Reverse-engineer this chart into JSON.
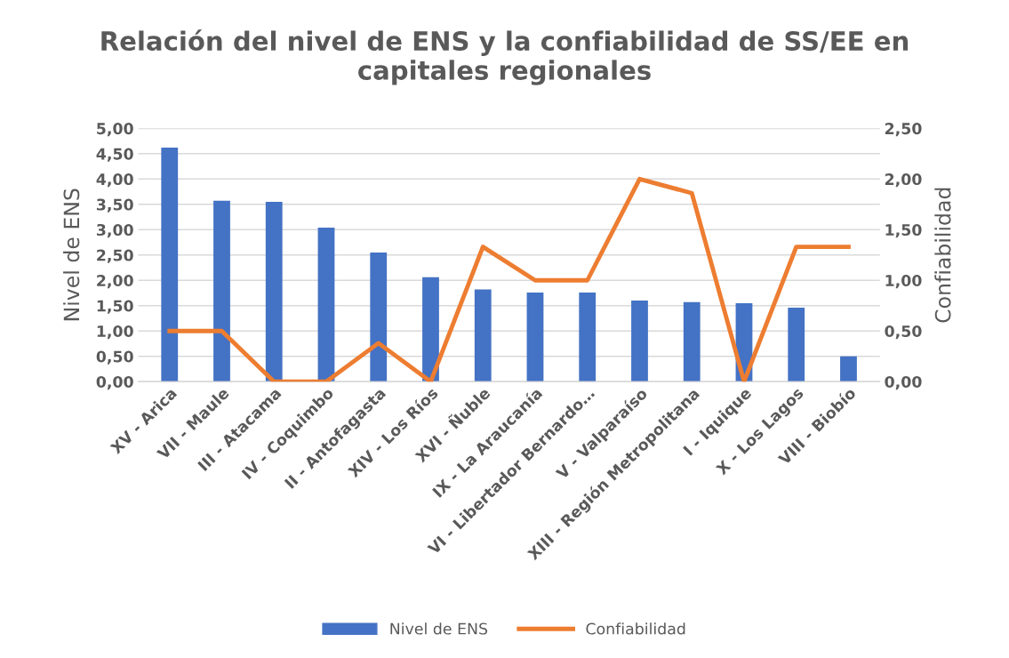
{
  "chart_data": {
    "type": "bar",
    "title": "Relación del nivel de ENS y la confiabilidad de SS/EE en\ncapitales regionales",
    "ylabel": "Nivel de ENS",
    "y2label": "Confiabilidad",
    "categories": [
      "XV - Arica",
      "VII - Maule",
      "III - Atacama",
      "IV - Coquimbo",
      "II - Antofagasta",
      "XIV - Los Ríos",
      "XVI - Ñuble",
      "IX - La Araucanía",
      "VI - Libertador Bernardo…",
      "V - Valparaíso",
      "XIII - Región Metropolitana",
      "I - Iquique",
      "X - Los Lagos",
      "VIII - Biobío"
    ],
    "series": [
      {
        "name": "Nivel de ENS",
        "color": "#4472c4",
        "values": [
          4.62,
          3.57,
          3.55,
          3.04,
          2.55,
          2.06,
          1.82,
          1.76,
          1.76,
          1.6,
          1.57,
          1.55,
          1.46,
          0.5
        ]
      },
      {
        "name": "Confiabilidad",
        "type": "line",
        "axis": "y2",
        "color": "#ed7d31",
        "values": [
          0.5,
          0.5,
          0,
          0,
          0.38,
          0,
          1.33,
          1.0,
          1.0,
          2.0,
          1.86,
          0,
          1.33,
          1.33
        ]
      }
    ],
    "ylim": [
      0,
      5
    ],
    "yticks": [
      {
        "value": 0,
        "label": "0,00"
      },
      {
        "value": 0.5,
        "label": "0,50"
      },
      {
        "value": 1,
        "label": "1,00"
      },
      {
        "value": 1.5,
        "label": "1,50"
      },
      {
        "value": 2,
        "label": "2,00"
      },
      {
        "value": 2.5,
        "label": "2,50"
      },
      {
        "value": 3,
        "label": "3,00"
      },
      {
        "value": 3.5,
        "label": "3,50"
      },
      {
        "value": 4,
        "label": "4,00"
      },
      {
        "value": 4.5,
        "label": "4,50"
      },
      {
        "value": 5,
        "label": "5,00"
      }
    ],
    "y2lim": [
      0,
      2.5
    ],
    "y2ticks": [
      {
        "value": 0,
        "label": "0,00"
      },
      {
        "value": 0.5,
        "label": "0,50"
      },
      {
        "value": 1,
        "label": "1,00"
      },
      {
        "value": 1.5,
        "label": "1,50"
      },
      {
        "value": 2,
        "label": "2,00"
      },
      {
        "value": 2.5,
        "label": "2,50"
      }
    ],
    "grid": "y",
    "legend": "bottom",
    "marker": "none",
    "line_style": "solid"
  }
}
